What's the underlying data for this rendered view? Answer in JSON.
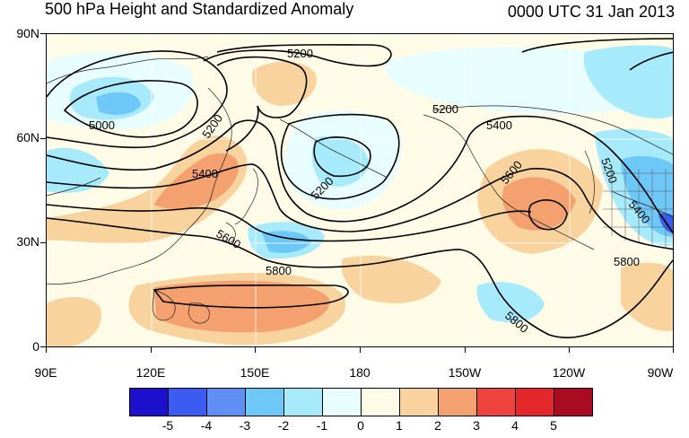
{
  "title": "500 hPa Height and Standardized Anomaly",
  "datetime": "0000 UTC 31 Jan 2013",
  "lat_labels": [
    "90N",
    "60N",
    "30N",
    "0"
  ],
  "lon_labels": [
    "90E",
    "120E",
    "150E",
    "180",
    "150W",
    "120W",
    "90W"
  ],
  "colorbar": {
    "colors": [
      "#1c10cc",
      "#3a5cf0",
      "#5d8ff5",
      "#6ec8f7",
      "#a6eafc",
      "#e8fdfd",
      "#fefbe6",
      "#f9d39d",
      "#f4a16f",
      "#ee433c",
      "#e4282a",
      "#a90c20"
    ],
    "labels": [
      "-5",
      "-4",
      "-3",
      "-2",
      "-1",
      "0",
      "1",
      "2",
      "3",
      "4",
      "5"
    ]
  },
  "contour_labels": [
    "5000",
    "5200",
    "5200",
    "5200",
    "5200",
    "5200",
    "5400",
    "5400",
    "5400",
    "5600",
    "5600",
    "5800",
    "5800",
    "5800"
  ],
  "map_colors": {
    "neutral": "#fefbe6",
    "weak_pos": "#f9d39d",
    "mod_pos": "#f4a16f",
    "weak_neg": "#e8fdfd",
    "light_neg": "#a6eafc",
    "mod_neg": "#6ec8f7",
    "strong_neg": "#3a5cf0"
  }
}
